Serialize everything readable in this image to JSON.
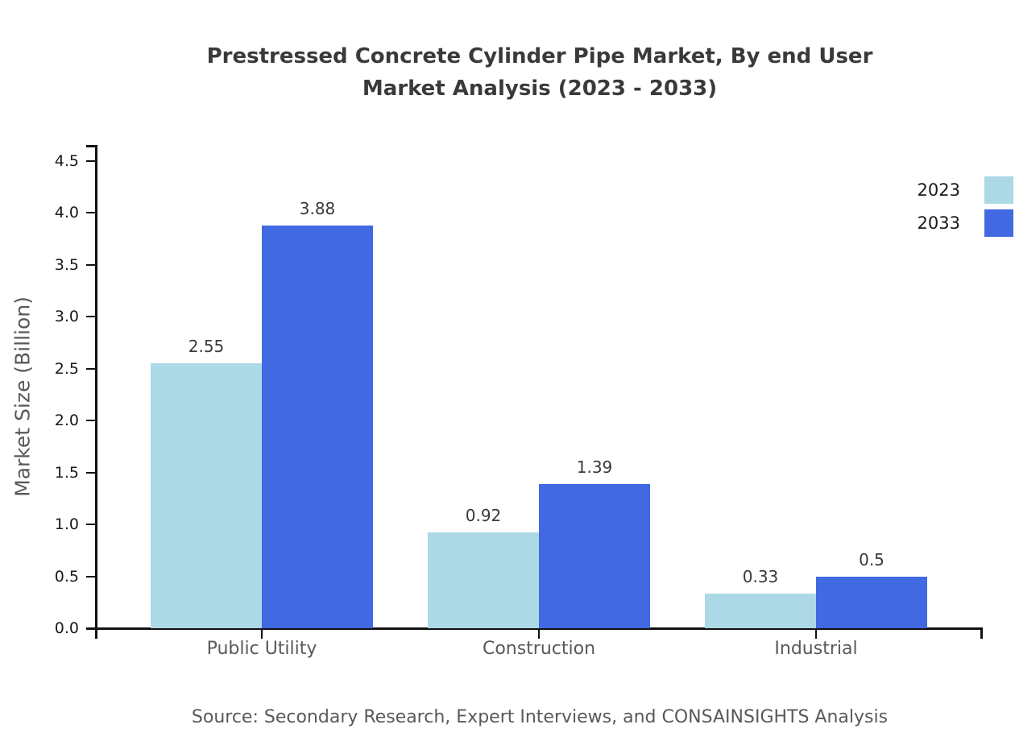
{
  "chart_data": {
    "type": "bar",
    "title_lines": [
      "Prestressed Concrete Cylinder Pipe Market, By end User",
      "Market Analysis (2023 - 2033)"
    ],
    "categories": [
      "Public Utility",
      "Construction",
      "Industrial"
    ],
    "series": [
      {
        "name": "2023",
        "color": "#ADD8E6",
        "values": [
          2.55,
          0.92,
          0.33
        ],
        "labels": [
          "2.55",
          "0.92",
          "0.33"
        ]
      },
      {
        "name": "2033",
        "color": "#4169E1",
        "values": [
          3.88,
          1.39,
          0.5
        ],
        "labels": [
          "3.88",
          "1.39",
          "0.5"
        ]
      }
    ],
    "xlabel": "",
    "ylabel": "Market Size (Billion)",
    "ylim": [
      0,
      4.5
    ],
    "ytick_step": 0.5,
    "yticks": [
      "0.0",
      "0.5",
      "1.0",
      "1.5",
      "2.0",
      "2.5",
      "3.0",
      "3.5",
      "4.0",
      "4.5"
    ],
    "grid": false,
    "legend_position": "right-top",
    "value_labels_shown": true
  },
  "colors": {
    "series_2023": "#ADD8E6",
    "series_2033": "#4169E1",
    "axis": "#111111",
    "title_text": "#3a3a3a",
    "muted_text": "#595959",
    "tick_text": "#1a1a1a"
  },
  "footer": {
    "source": "Source: Secondary Research, Expert Interviews, and CONSAINSIGHTS Analysis"
  }
}
